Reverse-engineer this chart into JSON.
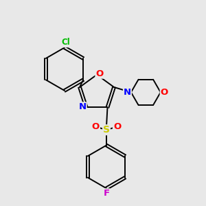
{
  "background_color": "#e8e8e8",
  "bond_color": "#000000",
  "atom_colors": {
    "Cl": "#00bb00",
    "N": "#0000ff",
    "O": "#ff0000",
    "S": "#cccc00",
    "F": "#cc00cc",
    "C": "#000000"
  },
  "figsize": [
    3.0,
    3.0
  ],
  "dpi": 100,
  "lw": 1.4
}
